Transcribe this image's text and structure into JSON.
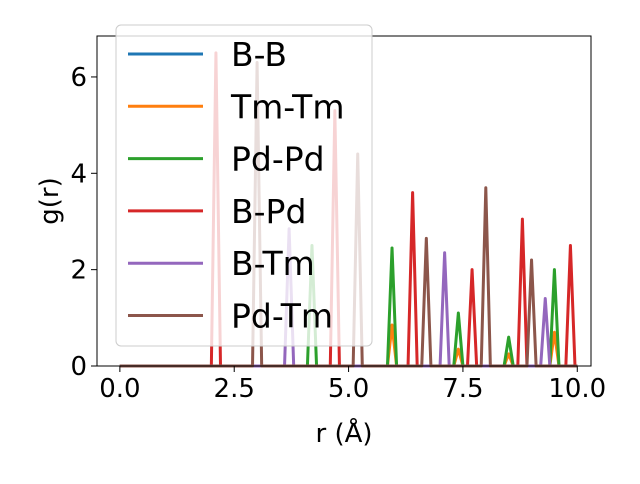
{
  "chart_data": {
    "type": "line",
    "xlabel": "r (Å)",
    "ylabel": "g(r)",
    "xlim": [
      -0.5,
      10.3
    ],
    "ylim": [
      0,
      6.85
    ],
    "xticks": [
      0.0,
      2.5,
      5.0,
      7.5,
      10.0
    ],
    "xtick_labels": [
      "0.0",
      "2.5",
      "5.0",
      "7.5",
      "10.0"
    ],
    "yticks": [
      0,
      2,
      4,
      6
    ],
    "ytick_labels": [
      "0",
      "2",
      "4",
      "6"
    ],
    "grid": false,
    "legend_position": "upper-left",
    "series": [
      {
        "name": "B-B",
        "color": "#1f77b4",
        "peaks": []
      },
      {
        "name": "Tm-Tm",
        "color": "#ff7f0e",
        "peaks": [
          [
            5.95,
            0.85
          ],
          [
            7.4,
            0.35
          ],
          [
            8.5,
            0.25
          ],
          [
            9.5,
            0.7
          ]
        ]
      },
      {
        "name": "Pd-Pd",
        "color": "#2ca02c",
        "peaks": [
          [
            4.2,
            2.5
          ],
          [
            5.95,
            2.45
          ],
          [
            7.4,
            1.1
          ],
          [
            8.5,
            0.6
          ],
          [
            9.5,
            2.0
          ]
        ]
      },
      {
        "name": "B-Pd",
        "color": "#d62728",
        "peaks": [
          [
            2.1,
            6.5
          ],
          [
            4.7,
            5.3
          ],
          [
            6.4,
            3.6
          ],
          [
            7.7,
            2.0
          ],
          [
            8.8,
            3.05
          ],
          [
            9.85,
            2.5
          ]
        ]
      },
      {
        "name": "B-Tm",
        "color": "#9467bd",
        "peaks": [
          [
            3.7,
            2.85
          ],
          [
            7.1,
            2.35
          ],
          [
            9.3,
            1.4
          ]
        ]
      },
      {
        "name": "Pd-Tm",
        "color": "#8c564b",
        "peaks": [
          [
            3.0,
            6.3
          ],
          [
            5.2,
            4.4
          ],
          [
            6.7,
            2.65
          ],
          [
            8.0,
            3.7
          ],
          [
            9.0,
            2.2
          ]
        ]
      }
    ],
    "x_start": 0.0,
    "x_end": 10.0
  }
}
